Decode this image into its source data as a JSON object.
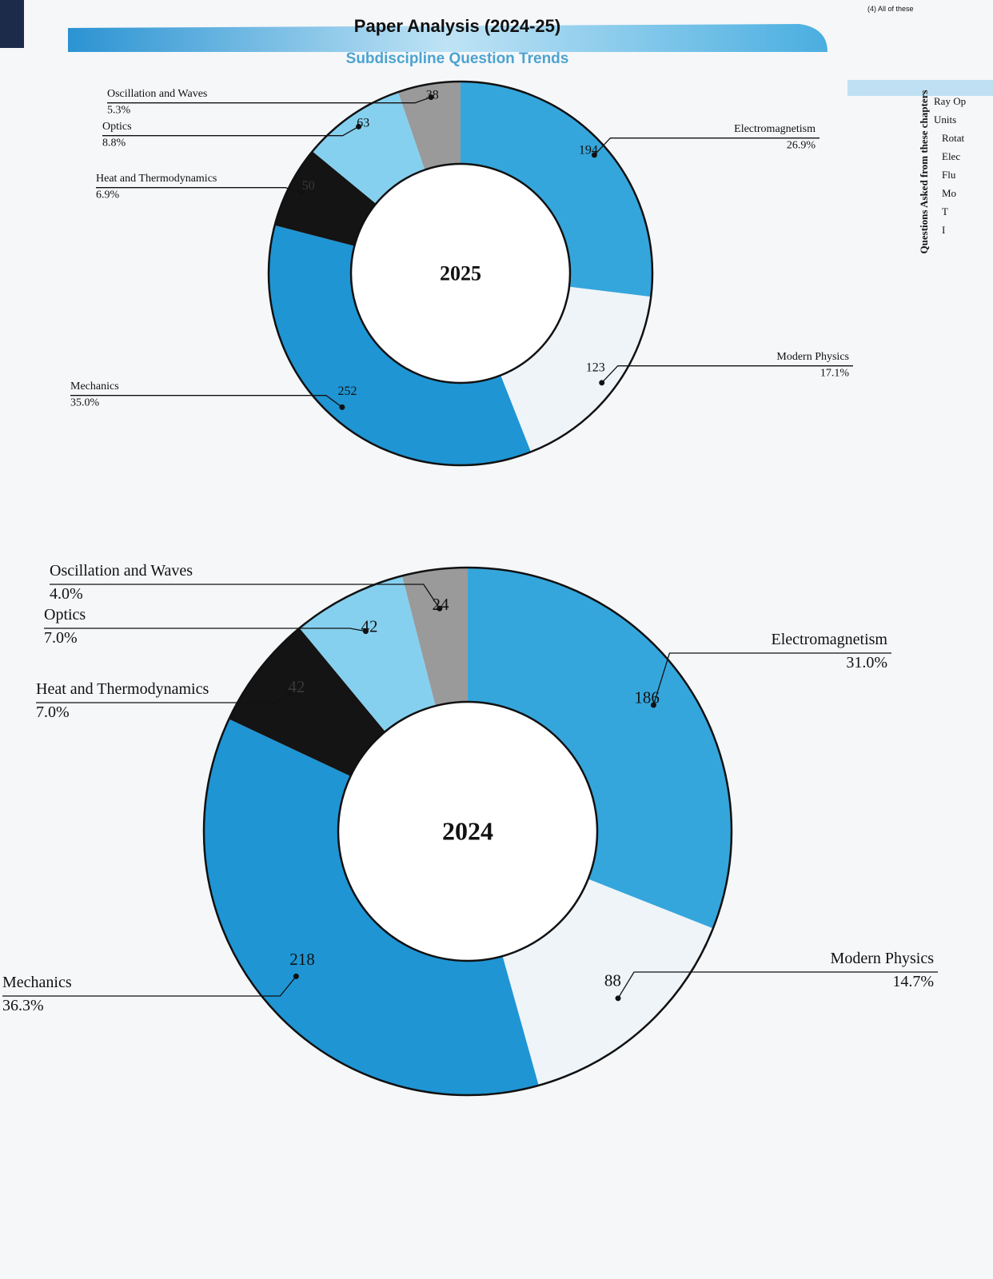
{
  "header": {
    "title": "Paper Analysis (2024-25)",
    "subtitle": "Subdiscipline Question Trends"
  },
  "side_panel": {
    "top_note": "(4) All of these",
    "heading": "Questions Asked from these chapters",
    "items": [
      "Ray Op",
      "Units",
      "Rotat",
      "Elec",
      "Flu",
      "Mo",
      "T",
      "I"
    ]
  },
  "chart_data": [
    {
      "type": "donut",
      "center_label": "2025",
      "categories": [
        "Electromagnetism",
        "Modern Physics",
        "Mechanics",
        "Heat and Thermodynamics",
        "Optics",
        "Oscillation and Waves"
      ],
      "values": [
        194,
        123,
        252,
        50,
        63,
        38
      ],
      "percent_labels": [
        "26.9%",
        "17.1%",
        "35.0%",
        "6.9%",
        "8.8%",
        "5.3%"
      ],
      "colors": [
        "#35a6dc",
        "#eef4f8",
        "#1f95d4",
        "#141414",
        "#86d0ef",
        "#9a9a9a"
      ]
    },
    {
      "type": "donut",
      "center_label": "2024",
      "categories": [
        "Electromagnetism",
        "Modern Physics",
        "Mechanics",
        "Heat and Thermodynamics",
        "Optics",
        "Oscillation and Waves"
      ],
      "values": [
        186,
        88,
        218,
        42,
        42,
        24
      ],
      "percent_labels": [
        "31.0%",
        "14.7%",
        "36.3%",
        "7.0%",
        "7.0%",
        "4.0%"
      ],
      "colors": [
        "#35a6dc",
        "#eef4f8",
        "#1f95d4",
        "#141414",
        "#86d0ef",
        "#9a9a9a"
      ]
    }
  ]
}
